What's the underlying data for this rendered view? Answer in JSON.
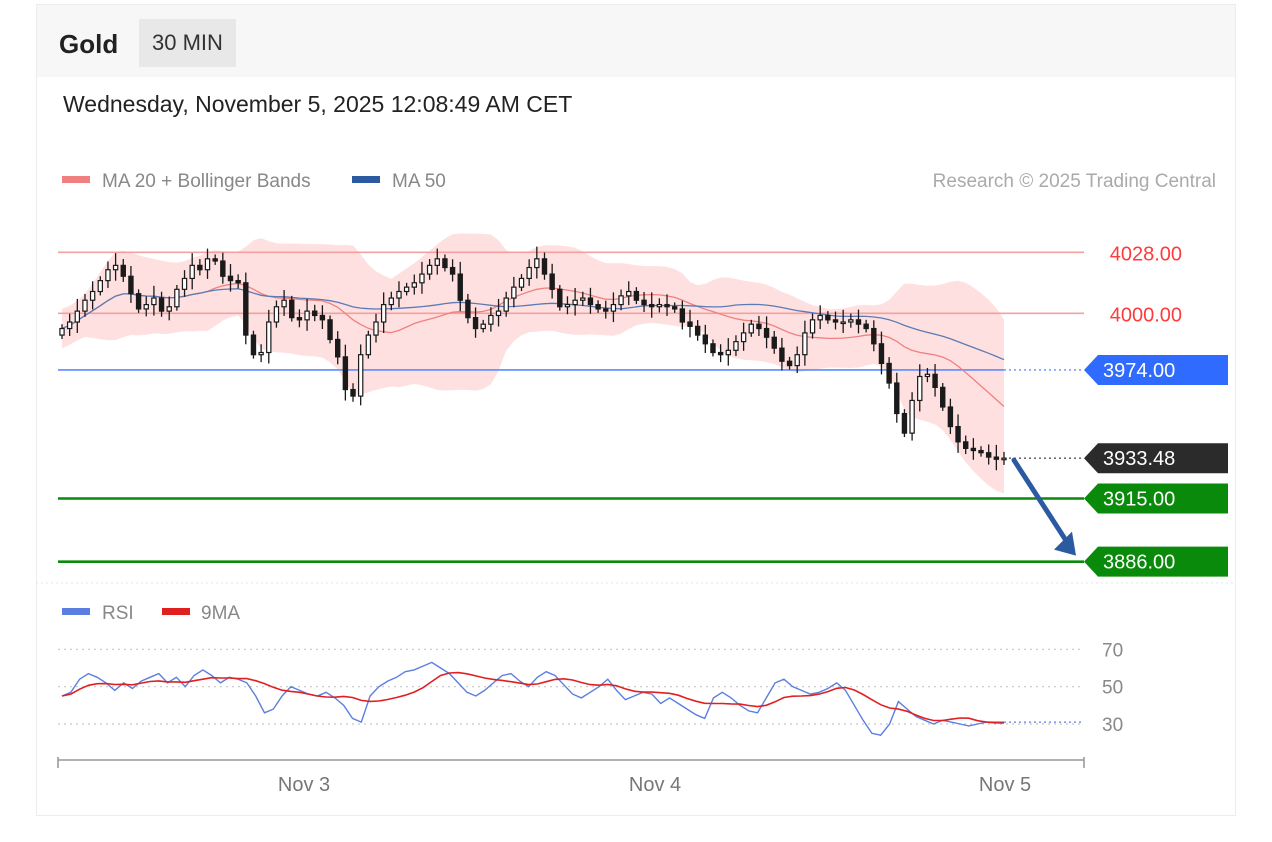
{
  "header": {
    "instrument": "Gold",
    "timeframe": "30 MIN"
  },
  "datetime": "Wednesday, November 5, 2025 12:08:49 AM CET",
  "legend": [
    {
      "label": "MA 20 + Bollinger Bands",
      "color": "#f08080"
    },
    {
      "label": "MA 50",
      "color": "#2c5aa0"
    }
  ],
  "credit": "Research © 2025 Trading Central",
  "colors": {
    "resistance": "#ff3b3b",
    "pivot": "#2f6bff",
    "support": "#0a8a0a",
    "last": "#2b2b2b",
    "rsi": "#5b7fe0",
    "rsi_ma": "#e02020",
    "candle": "#1a1a1a",
    "band": "#ffcccc",
    "arrow": "#2c5aa0"
  },
  "chart_data": [
    {
      "type": "candlestick",
      "ylim": [
        3873,
        4052
      ],
      "levels": [
        {
          "value": 4028,
          "label": "4028.00",
          "kind": "resistance"
        },
        {
          "value": 4000,
          "label": "4000.00",
          "kind": "resistance"
        },
        {
          "value": 3974,
          "label": "3974.00",
          "kind": "pivot"
        },
        {
          "value": 3933.48,
          "label": "3933.48",
          "kind": "last"
        },
        {
          "value": 3915,
          "label": "3915.00",
          "kind": "support"
        },
        {
          "value": 3886,
          "label": "3886.00",
          "kind": "support"
        }
      ],
      "x_ticks": [
        "Nov 3",
        "Nov 4",
        "Nov 5"
      ],
      "close": [
        3993,
        3996,
        4001,
        4006,
        4010,
        4015,
        4020,
        4022,
        4017,
        4009,
        4002,
        4004,
        4007,
        4001,
        4003,
        4011,
        4016,
        4022,
        4020,
        4025,
        4024,
        4017,
        4015,
        4014,
        3990,
        3981,
        3982,
        3996,
        4003,
        4006,
        3998,
        3997,
        4001,
        3999,
        3997,
        3988,
        3980,
        3965,
        3962,
        3981,
        3990,
        3996,
        4004,
        4007,
        4010,
        4012,
        4014,
        4018,
        4022,
        4025,
        4021,
        4018,
        4006,
        3998,
        3993,
        3995,
        3999,
        4001,
        4007,
        4012,
        4016,
        4021,
        4025,
        4018,
        4011,
        4003,
        4004,
        4006,
        4007,
        4004,
        4002,
        4001,
        4004,
        4008,
        4010,
        4006,
        4004,
        4003,
        4004,
        4003,
        4002,
        3996,
        3994,
        3990,
        3986,
        3982,
        3981,
        3983,
        3987,
        3991,
        3995,
        3993,
        3989,
        3984,
        3978,
        3976,
        3981,
        3991,
        3997,
        3999,
        3997,
        3996,
        3996,
        3997,
        3995,
        3993,
        3986,
        3977,
        3968,
        3954,
        3945,
        3960,
        3971,
        3972,
        3966,
        3957,
        3948,
        3941,
        3938,
        3937,
        3936,
        3934,
        3933,
        3933.5
      ]
    },
    {
      "type": "line",
      "title": "RSI",
      "series": [
        {
          "name": "RSI"
        },
        {
          "name": "9MA"
        }
      ],
      "yticks": [
        70,
        50,
        30
      ],
      "ylim": [
        15,
        75
      ],
      "rsi": [
        45,
        47,
        54,
        57,
        55,
        52,
        48,
        52,
        49,
        53,
        55,
        57,
        52,
        55,
        50,
        56,
        59,
        56,
        52,
        55,
        54,
        52,
        45,
        36,
        38,
        45,
        50,
        48,
        46,
        45,
        47,
        44,
        40,
        33,
        31,
        45,
        50,
        53,
        55,
        58,
        59,
        61,
        63,
        60,
        57,
        52,
        47,
        45,
        48,
        52,
        56,
        57,
        53,
        50,
        55,
        58,
        56,
        51,
        46,
        44,
        47,
        50,
        54,
        48,
        43,
        45,
        47,
        46,
        41,
        44,
        41,
        38,
        35,
        33,
        44,
        47,
        44,
        40,
        37,
        36,
        44,
        52,
        54,
        50,
        48,
        46,
        47,
        49,
        52,
        48,
        40,
        32,
        25,
        24,
        30,
        42,
        38,
        34,
        32,
        30,
        32,
        31,
        30,
        29,
        30,
        31,
        31,
        31
      ]
    }
  ]
}
